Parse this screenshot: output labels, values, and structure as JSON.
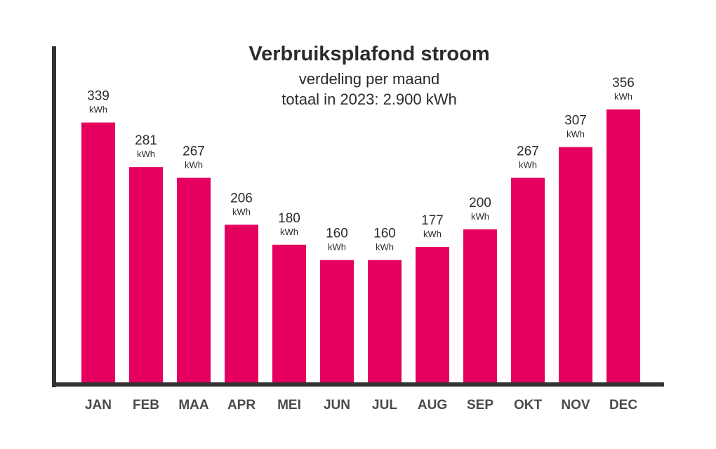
{
  "chart_data": {
    "type": "bar",
    "title": "Verbruiksplafond stroom",
    "subtitle_lines": [
      "verdeling per maand",
      "totaal in 2023: 2.900 kWh"
    ],
    "categories": [
      "JAN",
      "FEB",
      "MAA",
      "APR",
      "MEI",
      "JUN",
      "JUL",
      "AUG",
      "SEP",
      "OKT",
      "NOV",
      "DEC"
    ],
    "values": [
      339,
      281,
      267,
      206,
      180,
      160,
      160,
      177,
      200,
      267,
      307,
      356
    ],
    "value_unit": "kWh",
    "ylim": [
      0,
      356
    ],
    "grid": false,
    "bar_color": "#e5005f",
    "axis_color": "#333333"
  }
}
